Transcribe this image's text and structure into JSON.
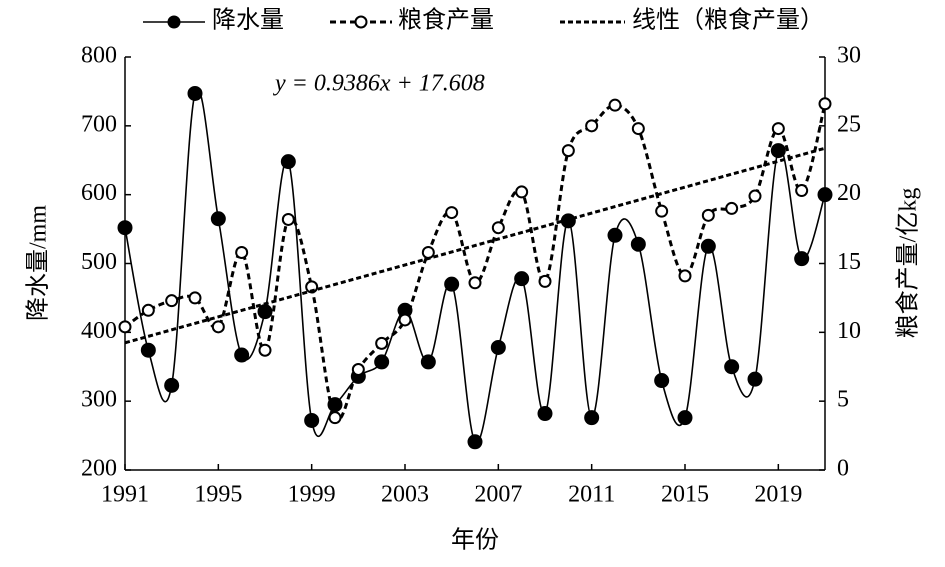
{
  "chart_data": {
    "type": "line",
    "x": [
      1991,
      1992,
      1993,
      1994,
      1995,
      1996,
      1997,
      1998,
      1999,
      2000,
      2001,
      2002,
      2003,
      2004,
      2005,
      2006,
      2007,
      2008,
      2009,
      2010,
      2011,
      2012,
      2013,
      2014,
      2015,
      2016,
      2017,
      2018,
      2019,
      2020,
      2021
    ],
    "series": [
      {
        "name": "降水量",
        "color": "#000000",
        "values": [
          552,
          374,
          323,
          747,
          565,
          367,
          430,
          648,
          272,
          295,
          336,
          357,
          432,
          357,
          470,
          241,
          378,
          478,
          282,
          562,
          276,
          541,
          528,
          330,
          276,
          525,
          350,
          332,
          664,
          507,
          600
        ]
      },
      {
        "name": "粮食产量",
        "color": "#000000",
        "axis": "y2",
        "values": [
          10.4,
          11.6,
          12.3,
          12.5,
          10.4,
          15.8,
          8.7,
          18.2,
          13.3,
          3.8,
          7.3,
          9.2,
          10.9,
          15.8,
          18.7,
          13.6,
          17.6,
          20.2,
          13.7,
          23.2,
          25.0,
          26.5,
          24.8,
          18.8,
          14.1,
          18.5,
          19.0,
          19.9,
          24.8,
          20.3,
          26.6
        ]
      }
    ],
    "trendline_name": "线性（粮食产量）",
    "annotation": "y = 0.9386x + 17.608",
    "xlabel": "年份",
    "ylabel": "降水量/mm",
    "y2label": "粮食产量/亿kg",
    "xlim": [
      1991,
      2021
    ],
    "xticks": [
      1991,
      1995,
      1999,
      2003,
      2007,
      2011,
      2015,
      2019
    ],
    "ylim": [
      200,
      800
    ],
    "yticks": [
      200,
      300,
      400,
      500,
      600,
      700,
      800
    ],
    "y2lim": [
      0,
      30
    ],
    "y2ticks": [
      0,
      5,
      10,
      15,
      20,
      25,
      30
    ],
    "legend": "top"
  }
}
